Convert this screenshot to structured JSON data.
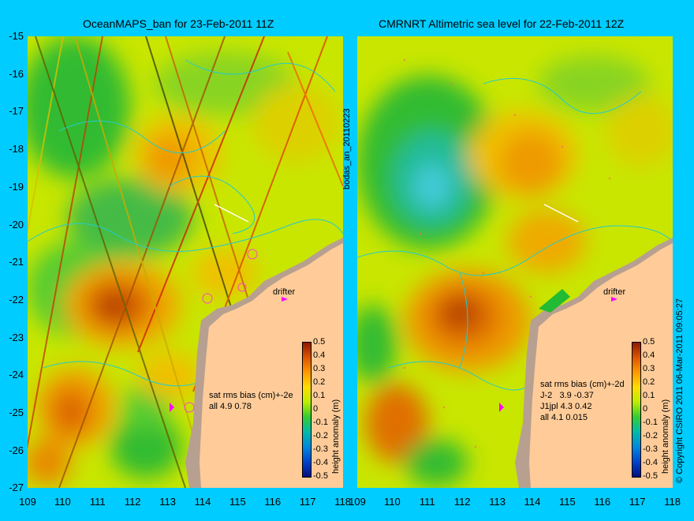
{
  "left_title": "OceanMAPS_ban for 23-Feb-2011 11Z",
  "right_title": "CMRNRT Altimetric sea level  for 22-Feb-2011 12Z",
  "y_ticks": [
    "-15",
    "-16",
    "-17",
    "-18",
    "-19",
    "-20",
    "-21",
    "-22",
    "-23",
    "-24",
    "-25",
    "-26",
    "-27"
  ],
  "x_ticks": [
    "109",
    "110",
    "111",
    "112",
    "113",
    "114",
    "115",
    "116",
    "117",
    "118"
  ],
  "colorbar_ticks": [
    "0.5",
    "0.4",
    "0.3",
    "0.2",
    "0.1",
    "0",
    "-0.1",
    "-0.2",
    "-0.3",
    "-0.4",
    "-0.5"
  ],
  "colorbar_label": "height anomaly (m)",
  "drifter_label": "drifter",
  "run_label": "bodas_an_20110223",
  "copyright": "© Copyright CSIRO 2011   06-Mar-2011 09:05:27",
  "left_stats": [
    "sat rms bias (cm)+-2e",
    "all 4.9 0.78"
  ],
  "right_stats": [
    "sat rms bias (cm)+-2d",
    "J-2   3.9 -0.37",
    "J1jpl 4.3 0.42",
    "all 4.1 0.015"
  ],
  "colors": {
    "background": "#00ccff",
    "land": "#ffcc99",
    "shelf": "#b8a090",
    "drifter_marker": "#ff00ff"
  }
}
